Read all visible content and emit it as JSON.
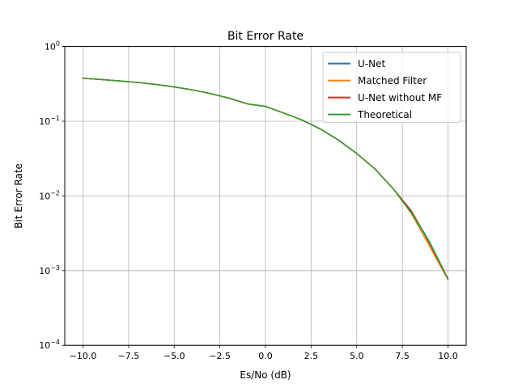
{
  "chart_data": {
    "type": "line",
    "title": "Bit Error Rate",
    "xlabel": "Es/No (dB)",
    "ylabel": "Bit Error Rate",
    "xlim": [
      -11.0,
      11.0
    ],
    "ylim": [
      0.0001,
      1
    ],
    "yscale": "log",
    "grid": true,
    "legend_position": "upper-right",
    "x_ticks": [
      -10.0,
      -7.5,
      -5.0,
      -2.5,
      0.0,
      2.5,
      5.0,
      7.5,
      10.0
    ],
    "x_tick_labels": [
      "−10.0",
      "−7.5",
      "−5.0",
      "−2.5",
      "0.0",
      "2.5",
      "5.0",
      "7.5",
      "10.0"
    ],
    "y_ticks": [
      0.0001,
      0.001,
      0.01,
      0.1,
      1
    ],
    "y_tick_base": [
      "10",
      "10",
      "10",
      "10",
      "10"
    ],
    "y_tick_exp": [
      "−4",
      "−3",
      "−2",
      "−1",
      "0"
    ],
    "x": [
      -10,
      -9,
      -8,
      -7,
      -6,
      -5,
      -4,
      -3,
      -2,
      -1,
      0,
      1,
      2,
      3,
      4,
      5,
      6,
      7,
      8,
      9,
      10
    ],
    "series": [
      {
        "name": "U-Net",
        "color": "#1f77b4",
        "values": [
          0.376,
          0.362,
          0.347,
          0.331,
          0.311,
          0.288,
          0.263,
          0.234,
          0.204,
          0.171,
          0.158,
          0.129,
          0.104,
          0.079,
          0.056,
          0.037,
          0.023,
          0.0125,
          0.0062,
          0.0024,
          0.00077
        ]
      },
      {
        "name": "Matched Filter",
        "color": "#ff7f0e",
        "values": [
          0.376,
          0.362,
          0.347,
          0.331,
          0.311,
          0.288,
          0.263,
          0.234,
          0.204,
          0.171,
          0.158,
          0.129,
          0.104,
          0.079,
          0.056,
          0.037,
          0.023,
          0.0125,
          0.0058,
          0.0021,
          0.00076
        ]
      },
      {
        "name": "U-Net without MF",
        "color": "#d62728",
        "values": [
          0.376,
          0.362,
          0.347,
          0.331,
          0.311,
          0.288,
          0.263,
          0.234,
          0.204,
          0.171,
          0.158,
          0.129,
          0.104,
          0.079,
          0.056,
          0.037,
          0.023,
          0.0125,
          0.0063,
          0.0023,
          0.00077
        ]
      },
      {
        "name": "Theoretical",
        "color": "#2ca02c",
        "values": [
          0.376,
          0.362,
          0.347,
          0.331,
          0.311,
          0.288,
          0.263,
          0.234,
          0.204,
          0.171,
          0.158,
          0.129,
          0.104,
          0.079,
          0.056,
          0.037,
          0.023,
          0.0125,
          0.0059,
          0.0024,
          0.00078
        ]
      }
    ]
  }
}
